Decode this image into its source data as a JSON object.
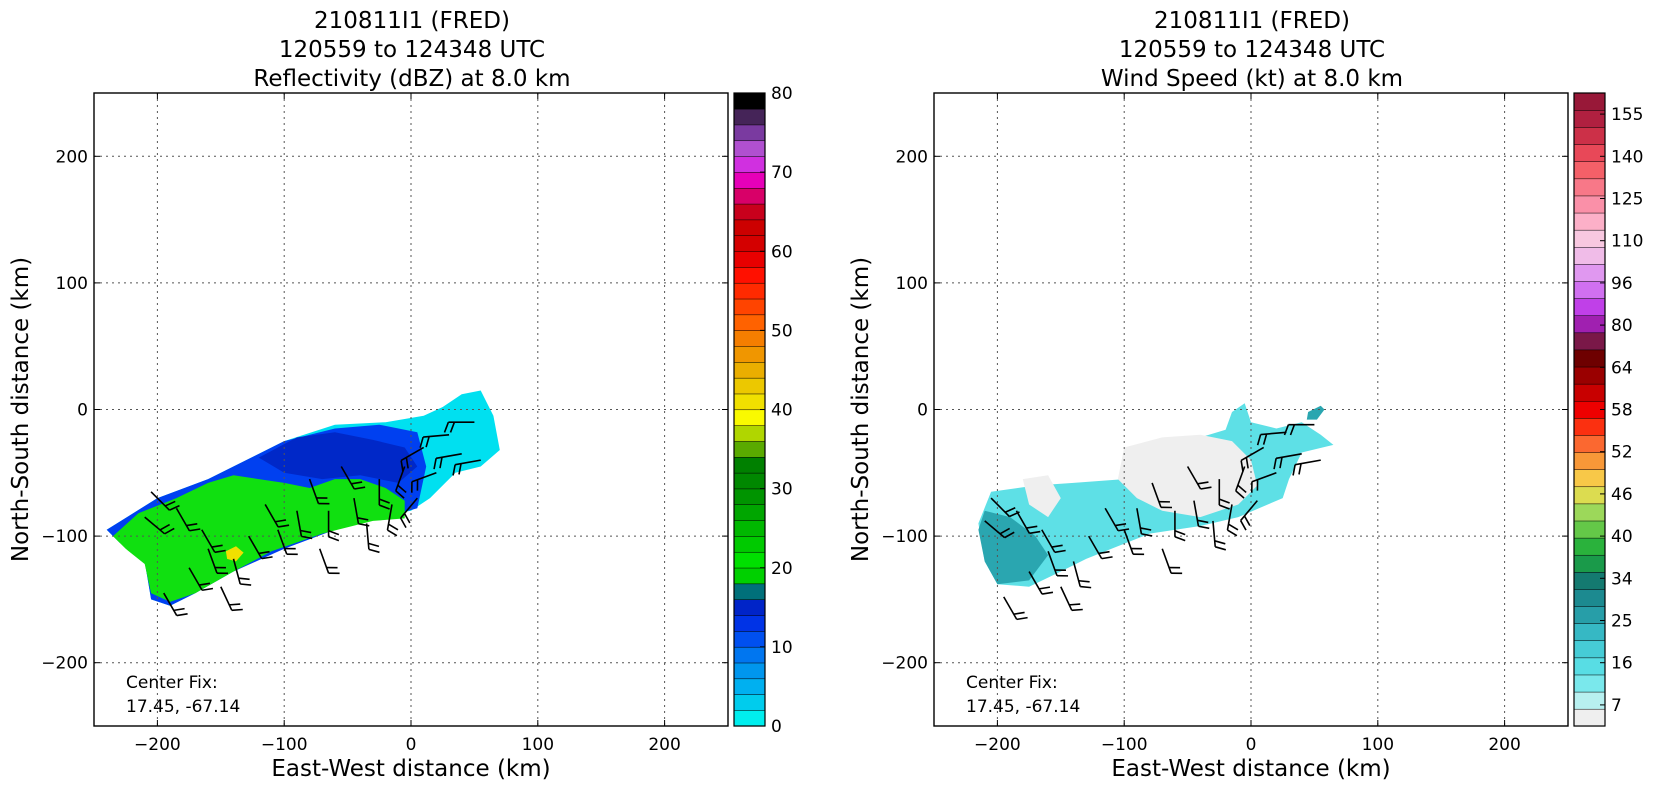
{
  "chart_data": [
    {
      "type": "heatmap",
      "title_lines": [
        "210811I1 (FRED)",
        "120559 to 124348 UTC",
        "Reflectivity (dBZ) at 8.0 km"
      ],
      "xlabel": "East-West distance (km)",
      "ylabel": "North-South distance (km)",
      "xlim": [
        -250,
        250
      ],
      "ylim": [
        -250,
        250
      ],
      "xticks": [
        -200,
        -100,
        0,
        100,
        200
      ],
      "yticks": [
        -200,
        -100,
        0,
        100,
        200
      ],
      "x_tick_labels": [
        "−200",
        "−100",
        "0",
        "100",
        "200"
      ],
      "y_tick_labels": [
        "−200",
        "−100",
        "0",
        "100",
        "200"
      ],
      "grid": true,
      "center_fix_label": "Center Fix:",
      "center_fix_value": "17.45, -67.14",
      "colorbar": {
        "min": 0,
        "max": 80,
        "levels": 32,
        "tick_values": [
          0,
          10,
          20,
          30,
          40,
          50,
          60,
          70,
          80
        ],
        "tick_labels": [
          "0",
          "10",
          "20",
          "30",
          "40",
          "50",
          "60",
          "70",
          "80"
        ],
        "colors": [
          "#00eeee",
          "#00cced",
          "#00b0f0",
          "#0096ee",
          "#0076f0",
          "#0050f0",
          "#0033e6",
          "#0024c8",
          "#00707a",
          "#00d000",
          "#00e000",
          "#00ca00",
          "#00b800",
          "#00a600",
          "#009400",
          "#008800",
          "#008000",
          "#5aaa00",
          "#b0d600",
          "#fafa00",
          "#f0e000",
          "#ecc800",
          "#eaae00",
          "#f09600",
          "#f57e00",
          "#ff6200",
          "#ff4400",
          "#ff2a00",
          "#ff1000",
          "#e80000",
          "#d40000",
          "#cc0000",
          "#c8001c",
          "#d80068",
          "#e600b8",
          "#d030e0",
          "#b050d0",
          "#7a3aa0",
          "#452458",
          "#000000"
        ]
      },
      "regions": [
        {
          "name": "cyan",
          "value": 3,
          "color": "#00e0f0",
          "polygon": [
            [
              -240,
              -95
            ],
            [
              -200,
              -70
            ],
            [
              -160,
              -55
            ],
            [
              -130,
              -40
            ],
            [
              -100,
              -25
            ],
            [
              -60,
              -12
            ],
            [
              -20,
              -10
            ],
            [
              10,
              -5
            ],
            [
              25,
              2
            ],
            [
              40,
              12
            ],
            [
              55,
              15
            ],
            [
              65,
              -5
            ],
            [
              70,
              -32
            ],
            [
              55,
              -45
            ],
            [
              35,
              -50
            ],
            [
              15,
              -70
            ],
            [
              0,
              -80
            ],
            [
              -30,
              -85
            ],
            [
              -70,
              -95
            ],
            [
              -110,
              -108
            ],
            [
              -140,
              -125
            ],
            [
              -170,
              -145
            ],
            [
              -190,
              -155
            ],
            [
              -205,
              -150
            ],
            [
              -210,
              -120
            ],
            [
              -230,
              -105
            ]
          ]
        },
        {
          "name": "blue",
          "value": 10,
          "color": "#0040f0",
          "polygon": [
            [
              -240,
              -95
            ],
            [
              -200,
              -70
            ],
            [
              -160,
              -55
            ],
            [
              -130,
              -40
            ],
            [
              -100,
              -25
            ],
            [
              -60,
              -15
            ],
            [
              -25,
              -12
            ],
            [
              5,
              -18
            ],
            [
              12,
              -45
            ],
            [
              5,
              -78
            ],
            [
              -20,
              -85
            ],
            [
              -60,
              -95
            ],
            [
              -100,
              -110
            ],
            [
              -140,
              -128
            ],
            [
              -170,
              -145
            ],
            [
              -190,
              -155
            ],
            [
              -205,
              -150
            ],
            [
              -210,
              -120
            ],
            [
              -230,
              -105
            ]
          ]
        },
        {
          "name": "green",
          "value": 22,
          "color": "#10e010",
          "polygon": [
            [
              -235,
              -100
            ],
            [
              -215,
              -82
            ],
            [
              -185,
              -70
            ],
            [
              -160,
              -58
            ],
            [
              -140,
              -52
            ],
            [
              -120,
              -55
            ],
            [
              -100,
              -58
            ],
            [
              -80,
              -62
            ],
            [
              -60,
              -55
            ],
            [
              -40,
              -55
            ],
            [
              -20,
              -62
            ],
            [
              -5,
              -72
            ],
            [
              -5,
              -86
            ],
            [
              -30,
              -88
            ],
            [
              -70,
              -98
            ],
            [
              -110,
              -112
            ],
            [
              -140,
              -128
            ],
            [
              -170,
              -145
            ],
            [
              -190,
              -152
            ],
            [
              -205,
              -145
            ],
            [
              -210,
              -122
            ],
            [
              -225,
              -110
            ]
          ]
        },
        {
          "name": "darkblue",
          "value": 13,
          "color": "#0028c8",
          "polygon": [
            [
              -120,
              -38
            ],
            [
              -90,
              -22
            ],
            [
              -60,
              -18
            ],
            [
              -30,
              -24
            ],
            [
              -5,
              -30
            ],
            [
              5,
              -45
            ],
            [
              -10,
              -58
            ],
            [
              -40,
              -52
            ],
            [
              -70,
              -55
            ],
            [
              -100,
              -50
            ]
          ]
        },
        {
          "name": "yellow",
          "value": 38,
          "color": "#f0e000",
          "polygon": [
            [
              -146,
              -112
            ],
            [
              -138,
              -108
            ],
            [
              -132,
              -113
            ],
            [
              -138,
              -120
            ],
            [
              -145,
              -118
            ]
          ]
        }
      ],
      "wind_barbs": [
        [
          -205,
          -65,
          315
        ],
        [
          -185,
          -78,
          300
        ],
        [
          -165,
          -95,
          300
        ],
        [
          -160,
          -110,
          290
        ],
        [
          -140,
          -118,
          285
        ],
        [
          -128,
          -100,
          300
        ],
        [
          -115,
          -75,
          300
        ],
        [
          -105,
          -95,
          290
        ],
        [
          -90,
          -80,
          280
        ],
        [
          -80,
          -55,
          290
        ],
        [
          -72,
          -110,
          290
        ],
        [
          -65,
          -80,
          270
        ],
        [
          -55,
          -45,
          300
        ],
        [
          -45,
          -70,
          280
        ],
        [
          -35,
          -90,
          275
        ],
        [
          -25,
          -55,
          270
        ],
        [
          -15,
          -75,
          260
        ],
        [
          -5,
          -45,
          250
        ],
        [
          5,
          -70,
          230
        ],
        [
          10,
          -30,
          210
        ],
        [
          20,
          -50,
          200
        ],
        [
          30,
          -20,
          185
        ],
        [
          40,
          -35,
          190
        ],
        [
          50,
          -10,
          180
        ],
        [
          55,
          -40,
          190
        ],
        [
          -210,
          -85,
          320
        ],
        [
          -175,
          -125,
          300
        ],
        [
          -150,
          -140,
          295
        ],
        [
          -195,
          -145,
          300
        ]
      ]
    },
    {
      "type": "heatmap",
      "title_lines": [
        "210811I1 (FRED)",
        "120559 to 124348 UTC",
        "Wind Speed (kt) at 8.0 km"
      ],
      "xlabel": "East-West distance (km)",
      "ylabel": "North-South distance (km)",
      "xlim": [
        -250,
        250
      ],
      "ylim": [
        -250,
        250
      ],
      "xticks": [
        -200,
        -100,
        0,
        100,
        200
      ],
      "yticks": [
        -200,
        -100,
        0,
        100,
        200
      ],
      "x_tick_labels": [
        "−200",
        "−100",
        "0",
        "100",
        "200"
      ],
      "y_tick_labels": [
        "−200",
        "−100",
        "0",
        "100",
        "200"
      ],
      "grid": true,
      "center_fix_label": "Center Fix:",
      "center_fix_value": "17.45, -67.14",
      "colorbar": {
        "levels": 29,
        "tick_labels": [
          "7",
          "16",
          "25",
          "34",
          "40",
          "46",
          "52",
          "58",
          "64",
          "80",
          "96",
          "110",
          "125",
          "140",
          "155"
        ],
        "colors": [
          "#efefef",
          "#b8f0f0",
          "#7ae8ec",
          "#58dde4",
          "#46ccd6",
          "#36b8c4",
          "#279ea8",
          "#1c8a90",
          "#147a70",
          "#1a9a4a",
          "#2ab23c",
          "#64c848",
          "#9cd85a",
          "#dcdc50",
          "#f8c848",
          "#f89838",
          "#fb6830",
          "#fb3010",
          "#ee0000",
          "#c80000",
          "#9a0000",
          "#6e0000",
          "#7a1848",
          "#a020b0",
          "#c040e8",
          "#d070f0",
          "#e098f0",
          "#f0bce8",
          "#f8c8e0",
          "#fcb0c8",
          "#fa90a8",
          "#f87888",
          "#f46068",
          "#e84858",
          "#cc3048",
          "#b02040",
          "#981838"
        ]
      },
      "regions": [
        {
          "name": "cyan",
          "value": 16,
          "color": "#5ee0e6",
          "polygon": [
            [
              -205,
              -65
            ],
            [
              -170,
              -60
            ],
            [
              -140,
              -58
            ],
            [
              -100,
              -55
            ],
            [
              -80,
              -45
            ],
            [
              -60,
              -28
            ],
            [
              -40,
              -22
            ],
            [
              -20,
              -16
            ],
            [
              -15,
              -2
            ],
            [
              -5,
              5
            ],
            [
              0,
              -10
            ],
            [
              20,
              -15
            ],
            [
              40,
              -10
            ],
            [
              55,
              -20
            ],
            [
              65,
              -28
            ],
            [
              40,
              -34
            ],
            [
              30,
              -55
            ],
            [
              25,
              -70
            ],
            [
              -10,
              -85
            ],
            [
              -40,
              -92
            ],
            [
              -80,
              -98
            ],
            [
              -110,
              -110
            ],
            [
              -130,
              -118
            ],
            [
              -150,
              -128
            ],
            [
              -175,
              -140
            ],
            [
              -200,
              -138
            ],
            [
              -210,
              -120
            ],
            [
              -215,
              -90
            ]
          ]
        },
        {
          "name": "teal",
          "value": 22,
          "color": "#2aa6b0",
          "polygon": [
            [
              -210,
              -80
            ],
            [
              -190,
              -85
            ],
            [
              -170,
              -100
            ],
            [
              -160,
              -115
            ],
            [
              -175,
              -135
            ],
            [
              -200,
              -138
            ],
            [
              -210,
              -120
            ],
            [
              -215,
              -95
            ]
          ]
        },
        {
          "name": "gray",
          "value": 5,
          "color": "#efefef",
          "polygon": [
            [
              -100,
              -30
            ],
            [
              -70,
              -22
            ],
            [
              -40,
              -20
            ],
            [
              -15,
              -25
            ],
            [
              0,
              -40
            ],
            [
              5,
              -60
            ],
            [
              -10,
              -75
            ],
            [
              -40,
              -85
            ],
            [
              -70,
              -80
            ],
            [
              -90,
              -70
            ],
            [
              -105,
              -55
            ]
          ]
        },
        {
          "name": "gray2",
          "value": 5,
          "color": "#efefef",
          "polygon": [
            [
              -180,
              -55
            ],
            [
              -160,
              -52
            ],
            [
              -150,
              -70
            ],
            [
              -160,
              -85
            ],
            [
              -175,
              -75
            ]
          ]
        },
        {
          "name": "teal2",
          "value": 22,
          "color": "#2aa6b0",
          "polygon": [
            [
              45,
              -2
            ],
            [
              55,
              3
            ],
            [
              58,
              0
            ],
            [
              52,
              -8
            ],
            [
              44,
              -8
            ]
          ]
        }
      ],
      "wind_barbs": [
        [
          -205,
          -70,
          315
        ],
        [
          -185,
          -80,
          300
        ],
        [
          -165,
          -95,
          300
        ],
        [
          -160,
          -112,
          290
        ],
        [
          -140,
          -120,
          285
        ],
        [
          -128,
          -100,
          300
        ],
        [
          -115,
          -78,
          300
        ],
        [
          -100,
          -95,
          290
        ],
        [
          -90,
          -78,
          280
        ],
        [
          -78,
          -58,
          290
        ],
        [
          -70,
          -110,
          290
        ],
        [
          -60,
          -80,
          270
        ],
        [
          -50,
          -45,
          300
        ],
        [
          -45,
          -72,
          280
        ],
        [
          -30,
          -88,
          275
        ],
        [
          -25,
          -55,
          270
        ],
        [
          -15,
          -75,
          260
        ],
        [
          -5,
          -45,
          250
        ],
        [
          5,
          -72,
          230
        ],
        [
          10,
          -30,
          210
        ],
        [
          20,
          -50,
          200
        ],
        [
          28,
          -18,
          185
        ],
        [
          40,
          -35,
          190
        ],
        [
          50,
          -12,
          180
        ],
        [
          55,
          -40,
          190
        ],
        [
          -210,
          -88,
          320
        ],
        [
          -175,
          -128,
          300
        ],
        [
          -150,
          -140,
          295
        ],
        [
          -195,
          -148,
          300
        ]
      ]
    }
  ]
}
